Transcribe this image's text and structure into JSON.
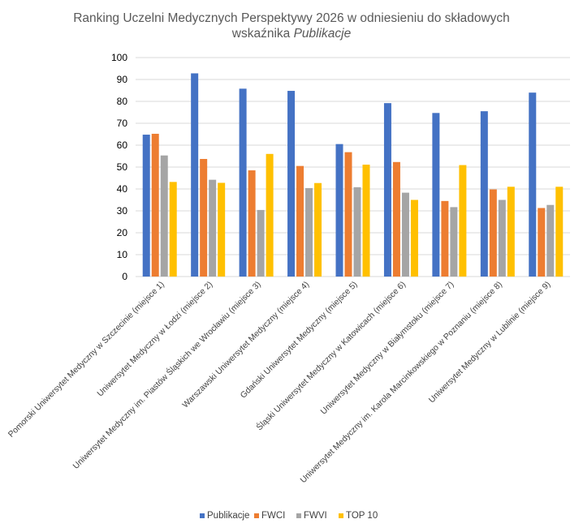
{
  "chart_data": {
    "type": "bar",
    "title": "Ranking Uczelni Medycznych Perspektywy 2026 w odniesieniu do składowych",
    "title_line2_prefix": "wskaźnika ",
    "title_line2_italic": "Publikacje",
    "xlabel": "",
    "ylabel": "",
    "ylim": [
      0,
      100
    ],
    "yticks": [
      0,
      10,
      20,
      30,
      40,
      50,
      60,
      70,
      80,
      90,
      100
    ],
    "grid": true,
    "legend_position": "bottom",
    "categories": [
      "Pomorski Uniwersytet Medyczny w Szczecinie (miejsce 1)",
      "Uniwersytet Medyczny w Łodzi (miejsce 2)",
      "Uniwersytet Medyczny im. Piastów Śląskich we Wrocławiu (miejsce 3)",
      "Warszawski Uniwersytet Medyczny (miejsce 4)",
      "Gdański Uniwersytet Medyczny (miejsce 5)",
      "Śląski Uniwersytet Medyczny w Katowicach (miejsce 6)",
      "Uniwersytet Medyczny w Białymstoku (miejsce 7)",
      "Uniwersytet Medyczny im. Karola Marcinkowskiego w Poznaniu (miejsce 8)",
      "Uniwersytet Medyczny w Lublinie (miejsce 9)"
    ],
    "series": [
      {
        "name": "Publikacje",
        "color": "#4472C4",
        "values": [
          64.8,
          92.8,
          85.8,
          84.8,
          60.5,
          79.2,
          74.7,
          75.5,
          84.0
        ]
      },
      {
        "name": "FWCI",
        "color": "#ED7D31",
        "values": [
          65.2,
          53.7,
          48.5,
          50.5,
          56.8,
          52.3,
          34.5,
          39.8,
          31.3
        ]
      },
      {
        "name": "FWVI",
        "color": "#A5A5A5",
        "values": [
          55.3,
          44.2,
          30.4,
          40.4,
          40.8,
          38.3,
          31.7,
          35.0,
          32.7
        ]
      },
      {
        "name": "TOP 10",
        "color": "#FFC000",
        "values": [
          43.2,
          42.8,
          56.0,
          42.7,
          51.1,
          35.0,
          50.9,
          41.0,
          41.0
        ]
      }
    ]
  }
}
